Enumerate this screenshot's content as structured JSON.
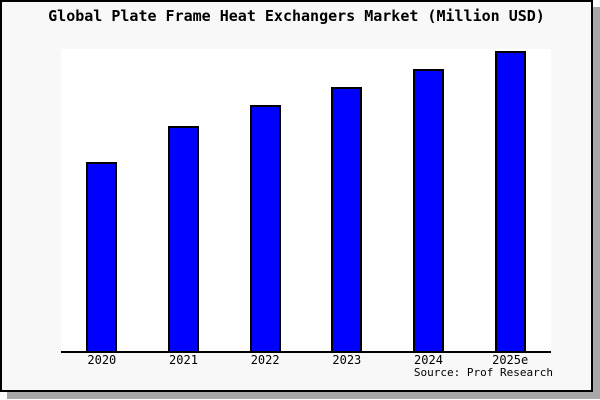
{
  "window": {
    "background_color": "#f8f8f8",
    "border_color": "#000000",
    "shadow_color": "#a8a8a8",
    "plot_background_color": "#ffffff"
  },
  "title": "Global Plate Frame Heat Exchangers Market (Million USD)",
  "source": "Source: Prof Research",
  "chart_data": {
    "type": "bar",
    "title": "Global Plate Frame Heat Exchangers Market (Million USD)",
    "categories": [
      "2020",
      "2021",
      "2022",
      "2023",
      "2024",
      "2025e"
    ],
    "values": [
      63,
      75,
      82,
      88,
      94,
      100
    ],
    "value_note": "relative bar heights; no y-axis ticks or data labels are shown in the image",
    "xlabel": "",
    "ylabel": "",
    "ylim": [
      0,
      100.7
    ],
    "grid": false,
    "legend": false,
    "bar_color": "#0000FF",
    "bar_edge_color": "#000000",
    "annotation": "Source: Prof Research"
  }
}
